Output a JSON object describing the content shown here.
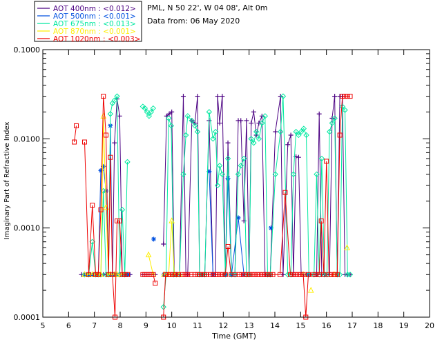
{
  "chart_data": {
    "type": "line",
    "title": "PML, N 50 22', W 04 08', Alt 0m",
    "subtitle": "Data from: 06 May 2020",
    "xlabel": "Time (GMT)",
    "ylabel": "Imaginary Part of Refractive Index",
    "x_ticks": [
      5,
      6,
      7,
      8,
      9,
      10,
      11,
      12,
      13,
      14,
      15,
      16,
      17,
      18,
      19,
      20
    ],
    "x_tick_labels": [
      "5",
      "6",
      "7",
      "8",
      "9",
      "10",
      "11",
      "12",
      "13",
      "14",
      "15",
      "16",
      "17",
      "18",
      "19",
      "20"
    ],
    "y_ticks": [
      0.0001,
      0.001,
      0.01,
      0.1
    ],
    "y_tick_labels": [
      "0.0001",
      "0.0010",
      "0.0100",
      "0.1000"
    ],
    "xlim": [
      5,
      20
    ],
    "ylim": [
      0.0001,
      0.1
    ],
    "yscale": "log",
    "legend": [
      {
        "label": "AOT  400nm : <0.012>",
        "color": "#4b0082"
      },
      {
        "label": "AOT  500nm : <0.001>",
        "color": "#0050e0"
      },
      {
        "label": "AOT  675nm : <0.013>",
        "color": "#00e8a0"
      },
      {
        "label": "AOT  870nm : <0.001>",
        "color": "#ffee00"
      },
      {
        "label": "AOT 1020nm : <0.003>",
        "color": "#ee0000"
      }
    ],
    "series": [
      {
        "name": "AOT 400nm",
        "color": "#4b0082",
        "marker": "plus",
        "x": [
          6.5,
          6.62,
          6.78,
          6.92,
          7.05,
          7.15,
          7.25,
          7.35,
          7.45,
          7.55,
          7.62,
          7.7,
          7.78,
          7.88,
          7.98,
          8.08,
          8.18,
          8.28,
          8.38,
          8.88,
          8.96,
          9.04,
          9.12,
          9.2,
          9.28,
          9.36,
          9.68,
          9.8,
          9.9,
          10.0,
          10.1,
          10.2,
          10.3,
          10.45,
          10.55,
          10.62,
          10.78,
          10.9,
          11.0,
          11.08,
          11.18,
          11.28,
          11.45,
          11.6,
          11.7,
          11.78,
          11.86,
          11.96,
          12.08,
          12.18,
          12.32,
          12.45,
          12.58,
          12.68,
          12.8,
          12.9,
          13.0,
          13.08,
          13.18,
          13.28,
          13.38,
          13.5,
          13.62,
          13.72,
          13.82,
          14.02,
          14.22,
          14.32,
          14.5,
          14.62,
          14.72,
          14.82,
          14.92,
          15.02,
          15.12,
          15.22,
          15.32,
          15.52,
          15.62,
          15.72,
          15.82,
          15.92,
          16.02,
          16.12,
          16.22,
          16.32,
          16.42,
          16.52,
          16.62,
          16.72,
          16.82,
          16.92
        ],
        "y": [
          0.0003,
          0.0003,
          0.0003,
          0.0003,
          0.0003,
          0.0003,
          0.0003,
          0.0003,
          0.0003,
          0.0003,
          0.0003,
          0.0003,
          0.009,
          0.028,
          0.018,
          0.0003,
          0.0003,
          0.0003,
          0.0003,
          0.0003,
          0.0003,
          0.0003,
          0.0003,
          0.0003,
          0.0003,
          0.0003,
          0.00066,
          0.018,
          0.019,
          0.02,
          0.0003,
          0.0003,
          0.0003,
          0.03,
          0.0003,
          0.0003,
          0.016,
          0.015,
          0.03,
          0.0003,
          0.0003,
          0.0003,
          0.016,
          0.0003,
          0.0003,
          0.03,
          0.015,
          0.03,
          0.0003,
          0.009,
          0.0003,
          0.0003,
          0.016,
          0.016,
          0.0012,
          0.016,
          0.0003,
          0.015,
          0.02,
          0.011,
          0.015,
          0.018,
          0.0003,
          0.0003,
          0.0003,
          0.012,
          0.03,
          0.0003,
          0.0086,
          0.011,
          0.0003,
          0.0063,
          0.0062,
          0.0003,
          0.0003,
          0.0003,
          0.0003,
          0.0003,
          0.0003,
          0.019,
          0.0003,
          0.0003,
          0.0003,
          0.0003,
          0.017,
          0.03,
          0.0003,
          0.03,
          0.03,
          0.0003,
          0.0003,
          0.0003
        ]
      },
      {
        "name": "AOT 500nm",
        "color": "#0050e0",
        "marker": "star",
        "x": [
          6.62,
          6.78,
          6.92,
          7.05,
          7.15,
          7.25,
          7.35,
          7.45,
          7.55,
          7.62,
          7.7,
          7.78,
          7.88,
          8.2,
          8.3,
          9.3,
          9.7,
          11.45,
          11.6,
          12.08,
          12.18,
          12.32,
          12.58,
          12.8,
          13.85,
          15.3
        ],
        "y": [
          0.0003,
          0.0003,
          0.0003,
          0.0003,
          0.0003,
          0.0044,
          0.0049,
          0.0026,
          0.0003,
          0.014,
          0.0003,
          0.0003,
          0.0003,
          0.0003,
          0.0003,
          0.00075,
          0.0003,
          0.0043,
          0.0003,
          0.0003,
          0.0036,
          0.0003,
          0.0013,
          0.0003,
          0.001,
          0.0003
        ]
      },
      {
        "name": "AOT 675nm",
        "color": "#00e8a0",
        "marker": "diamond",
        "x": [
          6.62,
          6.78,
          6.92,
          7.05,
          7.15,
          7.25,
          7.35,
          7.45,
          7.55,
          7.62,
          7.7,
          7.78,
          7.88,
          7.98,
          8.08,
          8.18,
          8.28,
          8.88,
          8.96,
          9.04,
          9.12,
          9.2,
          9.28,
          9.68,
          9.78,
          9.88,
          9.98,
          10.08,
          10.18,
          10.3,
          10.45,
          10.55,
          10.62,
          10.78,
          10.9,
          11.0,
          11.08,
          11.18,
          11.28,
          11.45,
          11.6,
          11.7,
          11.78,
          11.86,
          11.96,
          12.08,
          12.18,
          12.32,
          12.45,
          12.58,
          12.68,
          12.8,
          12.9,
          13.0,
          13.08,
          13.18,
          13.28,
          13.38,
          13.5,
          13.62,
          13.72,
          13.82,
          14.02,
          14.22,
          14.32,
          14.5,
          14.62,
          14.72,
          14.82,
          14.92,
          15.02,
          15.12,
          15.22,
          15.32,
          15.52,
          15.62,
          15.72,
          15.82,
          15.92,
          16.02,
          16.12,
          16.22,
          16.32,
          16.42,
          16.52,
          16.62,
          16.72,
          16.82,
          16.92
        ],
        "y": [
          0.0003,
          0.0003,
          0.0007,
          0.0003,
          0.0003,
          0.0003,
          0.0026,
          0.0003,
          0.0003,
          0.019,
          0.025,
          0.027,
          0.03,
          0.0003,
          0.0016,
          0.0003,
          0.0055,
          0.023,
          0.022,
          0.02,
          0.018,
          0.02,
          0.022,
          0.00013,
          0.0003,
          0.017,
          0.014,
          0.0003,
          0.0003,
          0.0003,
          0.004,
          0.011,
          0.018,
          0.016,
          0.014,
          0.012,
          0.0003,
          0.0003,
          0.0003,
          0.02,
          0.01,
          0.012,
          0.003,
          0.005,
          0.004,
          0.0003,
          0.006,
          0.0003,
          0.0003,
          0.004,
          0.005,
          0.006,
          0.0003,
          0.0003,
          0.01,
          0.009,
          0.012,
          0.01,
          0.015,
          0.018,
          0.0003,
          0.0003,
          0.004,
          0.012,
          0.03,
          0.0003,
          0.0003,
          0.004,
          0.012,
          0.011,
          0.012,
          0.013,
          0.011,
          0.0003,
          0.0003,
          0.004,
          0.0003,
          0.006,
          0.0003,
          0.0003,
          0.012,
          0.015,
          0.017,
          0.0003,
          0.0003,
          0.023,
          0.021,
          0.0003,
          0.0003
        ]
      },
      {
        "name": "AOT 870nm",
        "color": "#ffee00",
        "marker": "triangle",
        "x": [
          6.62,
          6.78,
          6.92,
          7.05,
          7.15,
          7.25,
          7.35,
          7.45,
          7.55,
          7.62,
          7.78,
          7.88,
          8.08,
          9.1,
          9.28,
          9.7,
          9.88,
          10.0,
          10.1,
          10.3,
          15.1,
          15.4,
          16.3,
          16.8
        ],
        "y": [
          0.0003,
          0.0003,
          0.0003,
          0.0003,
          0.0003,
          0.0003,
          0.018,
          0.0017,
          0.0003,
          0.0003,
          0.0003,
          0.0003,
          0.0003,
          0.0005,
          0.0003,
          0.0003,
          0.0003,
          0.0012,
          0.0003,
          0.0003,
          0.0003,
          0.0002,
          0.0003,
          0.0006
        ]
      },
      {
        "name": "AOT 1020nm",
        "color": "#ee0000",
        "marker": "square",
        "x": [
          6.22,
          6.3,
          6.62,
          6.78,
          6.92,
          7.05,
          7.15,
          7.25,
          7.35,
          7.45,
          7.55,
          7.62,
          7.7,
          7.8,
          7.88,
          7.98,
          8.08,
          8.18,
          8.28,
          8.88,
          8.96,
          9.04,
          9.12,
          9.2,
          9.28,
          9.36,
          9.68,
          9.76,
          9.86,
          9.96,
          10.06,
          10.16,
          10.26,
          10.42,
          10.52,
          10.62,
          10.75,
          10.9,
          11.0,
          11.08,
          11.18,
          11.28,
          11.36,
          11.5,
          11.6,
          11.7,
          11.78,
          11.88,
          11.98,
          12.08,
          12.18,
          12.3,
          12.45,
          12.62,
          12.72,
          12.82,
          12.92,
          13.02,
          13.12,
          13.22,
          13.32,
          13.42,
          13.52,
          13.62,
          13.72,
          13.82,
          13.92,
          14.2,
          14.4,
          14.6,
          14.7,
          14.8,
          14.9,
          15.0,
          15.1,
          15.2,
          15.3,
          15.5,
          15.6,
          15.72,
          15.8,
          15.9,
          16.0,
          16.1,
          16.2,
          16.32,
          16.42,
          16.52,
          16.62,
          16.72,
          16.82,
          16.92
        ],
        "y": [
          0.0092,
          0.014,
          0.0092,
          0.0003,
          0.0018,
          0.0003,
          0.0003,
          0.0016,
          0.03,
          0.011,
          0.0003,
          0.0062,
          0.0003,
          0.0001,
          0.0012,
          0.0012,
          0.0003,
          0.0003,
          0.0003,
          0.0003,
          0.0003,
          0.0003,
          0.0003,
          0.0003,
          0.0003,
          0.00024,
          0.0001,
          0.0003,
          0.0003,
          0.0003,
          0.0003,
          0.0003,
          0.0003,
          0.0003,
          0.0003,
          0.0003,
          0.0003,
          0.0003,
          0.0003,
          0.0003,
          0.0003,
          0.0003,
          0.0003,
          0.0003,
          0.0003,
          0.0003,
          0.0003,
          0.0003,
          0.0003,
          0.0003,
          0.00062,
          0.0003,
          0.0003,
          0.0003,
          0.0003,
          0.0003,
          0.0003,
          0.0003,
          0.0003,
          0.0003,
          0.0003,
          0.0003,
          0.0003,
          0.0003,
          0.0003,
          0.0003,
          0.0003,
          0.0003,
          0.0025,
          0.0003,
          0.0003,
          0.0003,
          0.0003,
          0.0003,
          0.0003,
          0.0001,
          0.0003,
          0.0003,
          0.0003,
          0.0003,
          0.0012,
          0.0003,
          0.0056,
          0.0003,
          0.0003,
          0.0003,
          0.0003,
          0.011,
          0.03,
          0.03,
          0.03,
          0.03
        ]
      }
    ]
  }
}
